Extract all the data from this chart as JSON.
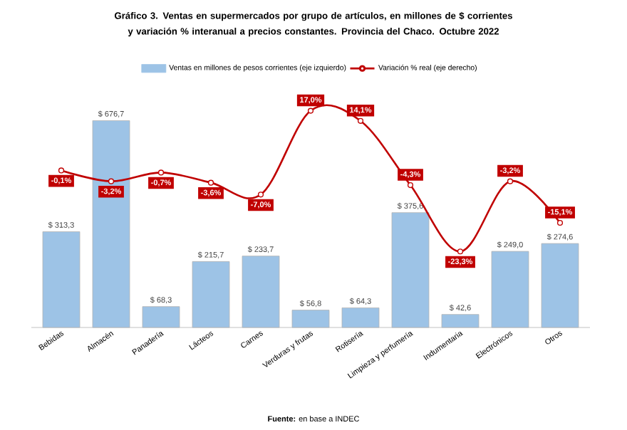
{
  "chart_data": {
    "type": "bar",
    "title": "Gráfico 3. Ventas en supermercados por grupo de artículos, en millones de $ corrientes y variación % interanual a precios constantes. Provincia del Chaco. Octubre 2022",
    "categories": [
      "Bebidas",
      "Almacén",
      "Panadería",
      "Lácteos",
      "Carnes",
      "Verduras y frutas",
      "Rotisería",
      "Limpieza y perfumería",
      "Indumentaria",
      "Electrónicos",
      "Otros"
    ],
    "series": [
      {
        "name": "Ventas en millones de pesos corrientes (eje izquierdo)",
        "color": "#9dc3e6",
        "values": [
          313.3,
          676.7,
          68.3,
          215.7,
          233.7,
          56.8,
          64.3,
          375.6,
          42.6,
          249.0,
          274.6
        ],
        "value_labels": [
          "$ 313,3",
          "$ 676,7",
          "$ 68,3",
          "$ 215,7",
          "$ 233,7",
          "$ 56,8",
          "$ 64,3",
          "$ 375,6",
          "$ 42,6",
          "$ 249,0",
          "$ 274,6"
        ]
      },
      {
        "name": "Variación % real (eje derecho)",
        "type": "line",
        "axis": "y2",
        "color": "#c00000",
        "marker": "circle",
        "values": [
          -0.1,
          -3.2,
          -0.7,
          -3.6,
          -7.0,
          17.0,
          14.1,
          -4.3,
          -23.3,
          -3.2,
          -15.1
        ],
        "value_labels": [
          "-0,1%",
          "-3,2%",
          "-0,7%",
          "-3,6%",
          "-7,0%",
          "17,0%",
          "14,1%",
          "-4,3%",
          "-23,3%",
          "-3,2%",
          "-15,1%"
        ]
      }
    ],
    "legend": "top",
    "tick_labels": "x",
    "annotations": [
      "**Fuente:** en base a INDEC"
    ]
  }
}
